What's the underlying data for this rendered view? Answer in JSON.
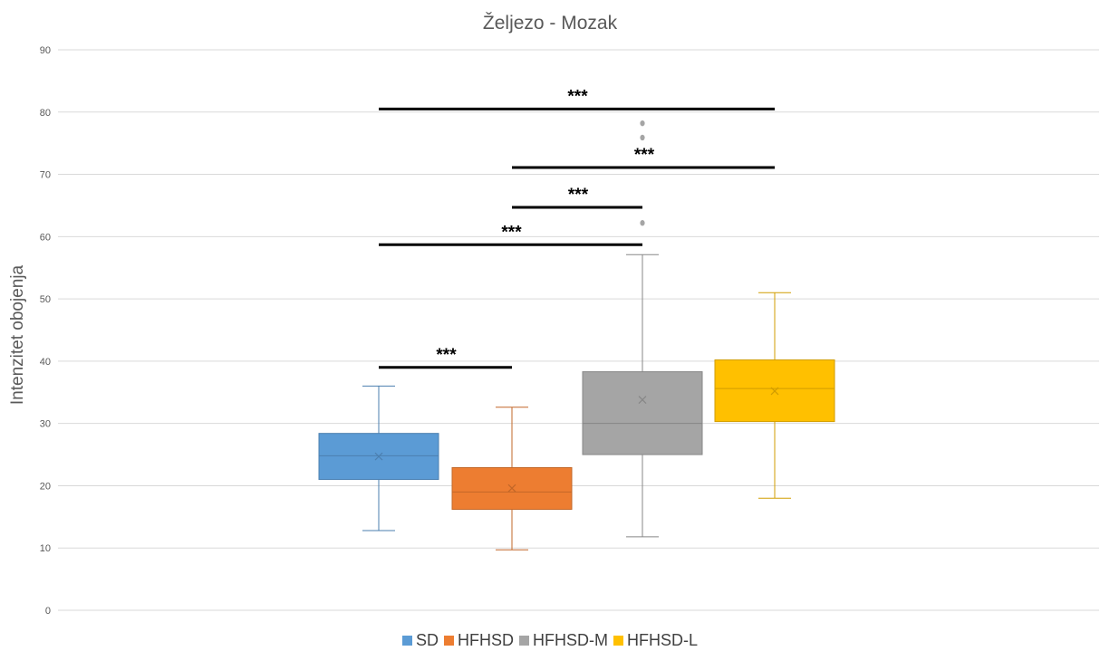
{
  "chart_data": {
    "type": "box",
    "title": "Željezo - Mozak",
    "xlabel": "",
    "ylabel": "Intenzitet obojenja",
    "ylim": [
      0,
      90
    ],
    "yticks": [
      0,
      10,
      20,
      30,
      40,
      50,
      60,
      70,
      80,
      90
    ],
    "grid": true,
    "legend_position": "bottom",
    "series": [
      {
        "name": "SD",
        "color": "#5B9BD5",
        "min": 12.8,
        "q1": 21,
        "median": 24.8,
        "q3": 28.4,
        "max": 36,
        "mean": 24.7,
        "outliers": []
      },
      {
        "name": "HFHSD",
        "color": "#ED7D31",
        "min": 9.7,
        "q1": 16.2,
        "median": 19,
        "q3": 22.9,
        "max": 32.6,
        "mean": 19.6,
        "outliers": []
      },
      {
        "name": "HFHSD-M",
        "color": "#A5A5A5",
        "min": 11.8,
        "q1": 25,
        "median": 30,
        "q3": 38.3,
        "max": 57.1,
        "mean": 33.8,
        "outliers": [
          62.2,
          75.9,
          78.2
        ]
      },
      {
        "name": "HFHSD-L",
        "color": "#FFC000",
        "min": 18,
        "q1": 30.3,
        "median": 35.6,
        "q3": 40.2,
        "max": 51,
        "mean": 35.2,
        "outliers": []
      }
    ],
    "significance": [
      {
        "from": "SD",
        "to": "HFHSD",
        "y": 39,
        "label": "***"
      },
      {
        "from": "SD",
        "to": "HFHSD-M",
        "y": 58.7,
        "label": "***"
      },
      {
        "from": "HFHSD",
        "to": "HFHSD-M",
        "y": 64.7,
        "label": "***"
      },
      {
        "from": "HFHSD",
        "to": "HFHSD-L",
        "y": 71.1,
        "label": "***"
      },
      {
        "from": "SD",
        "to": "HFHSD-L",
        "y": 80.5,
        "label": "***"
      }
    ]
  }
}
